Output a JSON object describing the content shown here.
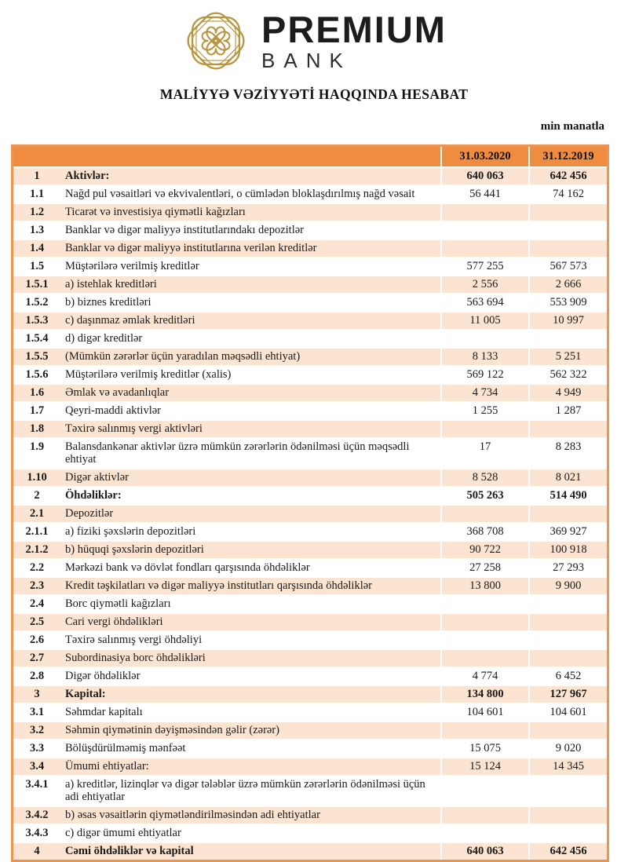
{
  "brand": {
    "name": "PREMIUM",
    "subname": "BANK",
    "logo_color": "#B8953F"
  },
  "title": "MALİYYƏ VƏZİYYƏTİ HAQQINDA HESABAT",
  "unit_note": "min manatla",
  "colors": {
    "header_orange": "#EF8C3F",
    "band_peach": "#FBE4D1",
    "table_border": "#EC9451",
    "text": "#1a1a1a",
    "logo_gold": "#B8953F"
  },
  "table": {
    "col_2020": "31.03.2020",
    "col_2019": "31.12.2019",
    "rows": [
      {
        "no": "1",
        "label": "Aktivlər:",
        "v2020": "640 063",
        "v2019": "642 456",
        "bold": true
      },
      {
        "no": "1.1",
        "label": "Nağd pul vəsaitləri və  ekvivalentləri, o cümlədən bloklaşdırılmış nağd vəsait",
        "v2020": "56 441",
        "v2019": "74 162"
      },
      {
        "no": "1.2",
        "label": "Ticarət və investisiya qiymətli kağızları",
        "v2020": "",
        "v2019": ""
      },
      {
        "no": "1.3",
        "label": "Banklar və digər maliyyə institutlarındakı depozitlər",
        "v2020": "",
        "v2019": ""
      },
      {
        "no": "1.4",
        "label": "Banklar və digər maliyyə institutlarına verilən kreditlər",
        "v2020": "",
        "v2019": ""
      },
      {
        "no": "1.5",
        "label": "Müştərilərə verilmiş kreditlər",
        "v2020": "577 255",
        "v2019": "567 573"
      },
      {
        "no": "1.5.1",
        "label": "a) istehlak kreditləri",
        "v2020": "2 556",
        "v2019": "2 666"
      },
      {
        "no": "1.5.2",
        "label": "b) biznes kreditləri",
        "v2020": "563 694",
        "v2019": "553 909"
      },
      {
        "no": "1.5.3",
        "label": "c) daşınmaz əmlak kreditləri",
        "v2020": "11 005",
        "v2019": "10 997"
      },
      {
        "no": "1.5.4",
        "label": "d) digər kreditlər",
        "v2020": "",
        "v2019": ""
      },
      {
        "no": "1.5.5",
        "label": "(Mümkün zərərlər üçün yaradılan məqsədli ehtiyat)",
        "v2020": "8 133",
        "v2019": "5 251"
      },
      {
        "no": "1.5.6",
        "label": "Müştərilərə verilmiş kreditlər (xalis)",
        "v2020": "569 122",
        "v2019": "562 322"
      },
      {
        "no": "1.6",
        "label": "Əmlak və avadanlıqlar",
        "v2020": "4 734",
        "v2019": "4 949"
      },
      {
        "no": "1.7",
        "label": "Qeyri-maddi aktivlər",
        "v2020": "1 255",
        "v2019": "1 287"
      },
      {
        "no": "1.8",
        "label": "Təxirə salınmış vergi aktivləri",
        "v2020": "",
        "v2019": ""
      },
      {
        "no": "1.9",
        "label": "Balansdankənar aktivlər üzrə mümkün zərərlərin ödənilməsi üçün məqsədli ehtiyat",
        "v2020": "17",
        "v2019": "8 283"
      },
      {
        "no": "1.10",
        "label": "Digər aktivlər",
        "v2020": "8 528",
        "v2019": "8 021"
      },
      {
        "no": "2",
        "label": "Öhdəliklər:",
        "v2020": "505 263",
        "v2019": "514 490",
        "bold": true
      },
      {
        "no": "2.1",
        "label": "Depozitlər",
        "v2020": "",
        "v2019": ""
      },
      {
        "no": "2.1.1",
        "label": "a) fiziki şəxslərin depozitləri",
        "v2020": "368 708",
        "v2019": "369 927"
      },
      {
        "no": "2.1.2",
        "label": "b) hüquqi şəxslərin depozitləri",
        "v2020": "90 722",
        "v2019": "100 918"
      },
      {
        "no": "2.2",
        "label": "Mərkəzi bank və dövlət fondları qarşısında öhdəliklər",
        "v2020": "27 258",
        "v2019": "27 293"
      },
      {
        "no": "2.3",
        "label": "Kredit təşkilatları və digər maliyyə institutları qarşısında öhdəliklər",
        "v2020": "13 800",
        "v2019": "9 900"
      },
      {
        "no": "2.4",
        "label": "Borc qiymətli kağızları",
        "v2020": "",
        "v2019": ""
      },
      {
        "no": "2.5",
        "label": "Cari vergi öhdəlikləri",
        "v2020": "",
        "v2019": ""
      },
      {
        "no": "2.6",
        "label": "Təxirə salınmış vergi öhdəliyi",
        "v2020": "",
        "v2019": ""
      },
      {
        "no": "2.7",
        "label": "Subordinasiya borc öhdəlikləri",
        "v2020": "",
        "v2019": ""
      },
      {
        "no": "2.8",
        "label": "Digər öhdəliklər",
        "v2020": "4 774",
        "v2019": "6 452"
      },
      {
        "no": "3",
        "label": "Kapital:",
        "v2020": "134 800",
        "v2019": "127 967",
        "bold": true
      },
      {
        "no": "3.1",
        "label": "Səhmdar kapitalı",
        "v2020": "104 601",
        "v2019": "104 601"
      },
      {
        "no": "3.2",
        "label": "Səhmin qiymətinin dəyişməsindən gəlir (zərər)",
        "v2020": "",
        "v2019": ""
      },
      {
        "no": "3.3",
        "label": "Bölüşdürülməmiş mənfəət",
        "v2020": "15 075",
        "v2019": "9 020"
      },
      {
        "no": "3.4",
        "label": "Ümumi ehtiyatlar:",
        "v2020": "15 124",
        "v2019": "14 345"
      },
      {
        "no": "3.4.1",
        "label": "a) kreditlər, lizinqlər və digər tələblər üzrə mümkün zərərlərin ödənilməsi üçün adi ehtiyatlar",
        "v2020": "",
        "v2019": ""
      },
      {
        "no": "3.4.2",
        "label": "b) əsas vəsaitlərin qiymətləndirilməsindən adi ehtiyatlar",
        "v2020": "",
        "v2019": ""
      },
      {
        "no": "3.4.3",
        "label": "c) digər ümumi ehtiyatlar",
        "v2020": "",
        "v2019": ""
      },
      {
        "no": "4",
        "label": "Cəmi öhdəliklər və kapital",
        "v2020": "640 063",
        "v2019": "642 456",
        "bold": true
      }
    ]
  }
}
